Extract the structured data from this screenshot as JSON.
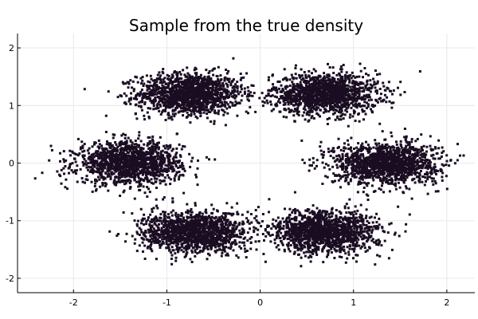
{
  "chart_data": {
    "type": "scatter",
    "title": "Sample from the true density",
    "xlabel": "",
    "ylabel": "",
    "xlim": [
      -2.6,
      2.3
    ],
    "ylim": [
      -2.25,
      2.25
    ],
    "x_ticks": [
      -2,
      -1,
      0,
      1,
      2
    ],
    "y_ticks": [
      -2,
      -1,
      0,
      1,
      2
    ],
    "x_tick_labels": [
      "-2",
      "-1",
      "0",
      "1",
      "2"
    ],
    "y_tick_labels": [
      "-2",
      "-1",
      "0",
      "1",
      "2"
    ],
    "grid": true,
    "legend": "none",
    "point_color": "#1a0d22",
    "distribution": {
      "kind": "mixture of six gaussians",
      "centers": [
        [
          -0.75,
          1.2
        ],
        [
          0.7,
          1.2
        ],
        [
          -1.4,
          0.0
        ],
        [
          1.35,
          0.0
        ],
        [
          -0.7,
          -1.2
        ],
        [
          0.7,
          -1.2
        ]
      ],
      "std_x": 0.28,
      "std_y": 0.18,
      "points_per_cluster": 1400
    }
  }
}
